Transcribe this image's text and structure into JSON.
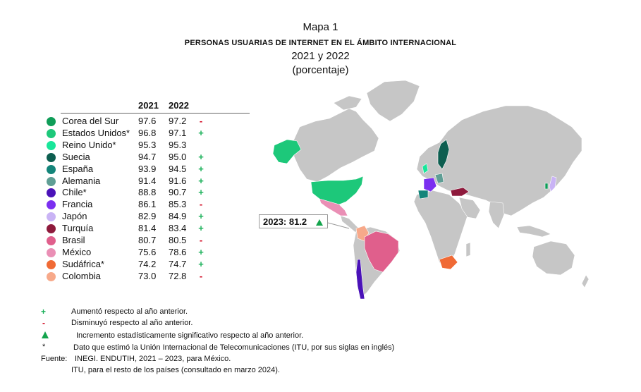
{
  "title": {
    "line1": "Mapa 1",
    "line2": "PERSONAS USUARIAS DE INTERNET EN EL ÁMBITO INTERNACIONAL",
    "line3": "2021 y 2022",
    "line4": "(porcentaje)"
  },
  "legend": {
    "col_2021": "2021",
    "col_2022": "2022",
    "rows": [
      {
        "country": "Corea del Sur",
        "v2021": "97.6",
        "v2022": "97.2",
        "sign": "-",
        "color": "#0f9d58"
      },
      {
        "country": "Estados Unidos*",
        "v2021": "96.8",
        "v2022": "97.1",
        "sign": "+",
        "color": "#1dc87a"
      },
      {
        "country": "Reino Unido*",
        "v2021": "95.3",
        "v2022": "95.3",
        "sign": "",
        "color": "#19e69a"
      },
      {
        "country": "Suecia",
        "v2021": "94.7",
        "v2022": "95.0",
        "sign": "+",
        "color": "#0d5e50"
      },
      {
        "country": "España",
        "v2021": "93.9",
        "v2022": "94.5",
        "sign": "+",
        "color": "#14857a"
      },
      {
        "country": "Alemania",
        "v2021": "91.4",
        "v2022": "91.6",
        "sign": "+",
        "color": "#5f9e95"
      },
      {
        "country": "Chile*",
        "v2021": "88.8",
        "v2022": "90.7",
        "sign": "+",
        "color": "#4a12b8"
      },
      {
        "country": "Francia",
        "v2021": "86.1",
        "v2022": "85.3",
        "sign": "-",
        "color": "#7b2ff0"
      },
      {
        "country": "Japón",
        "v2021": "82.9",
        "v2022": "84.9",
        "sign": "+",
        "color": "#c9b3f5"
      },
      {
        "country": "Turquía",
        "v2021": "81.4",
        "v2022": "83.4",
        "sign": "+",
        "color": "#8e1a3c"
      },
      {
        "country": "Brasil",
        "v2021": "80.7",
        "v2022": "80.5",
        "sign": "-",
        "color": "#e05f8c"
      },
      {
        "country": "México",
        "v2021": "75.6",
        "v2022": "78.6",
        "sign": "+",
        "color": "#ea8fb5"
      },
      {
        "country": "Sudáfrica*",
        "v2021": "74.2",
        "v2022": "74.7",
        "sign": "+",
        "color": "#f06a35"
      },
      {
        "country": "Colombia",
        "v2021": "73.0",
        "v2022": "72.8",
        "sign": "-",
        "color": "#f7a98a"
      }
    ]
  },
  "map": {
    "land_color": "#c6c6c6",
    "callout": "2023: 81.2",
    "callout_color": "#14a44d"
  },
  "notes": {
    "plus_symbol": "+",
    "plus_text": "Aumentó respecto al año anterior.",
    "minus_symbol": "-",
    "minus_text": "Disminuyó respecto al año anterior.",
    "triangle_text": "Incremento estadísticamente significativo respecto al año anterior.",
    "star_symbol": "*",
    "star_text": "Dato que estimó la Unión Internacional de Telecomunicaciones (ITU, por sus siglas en inglés)",
    "source_label": "Fuente:",
    "source_text1": "INEGI. ENDUTIH, 2021 – 2023, para México.",
    "source_text2": "ITU, para el resto de los países (consultado en marzo 2024)."
  }
}
